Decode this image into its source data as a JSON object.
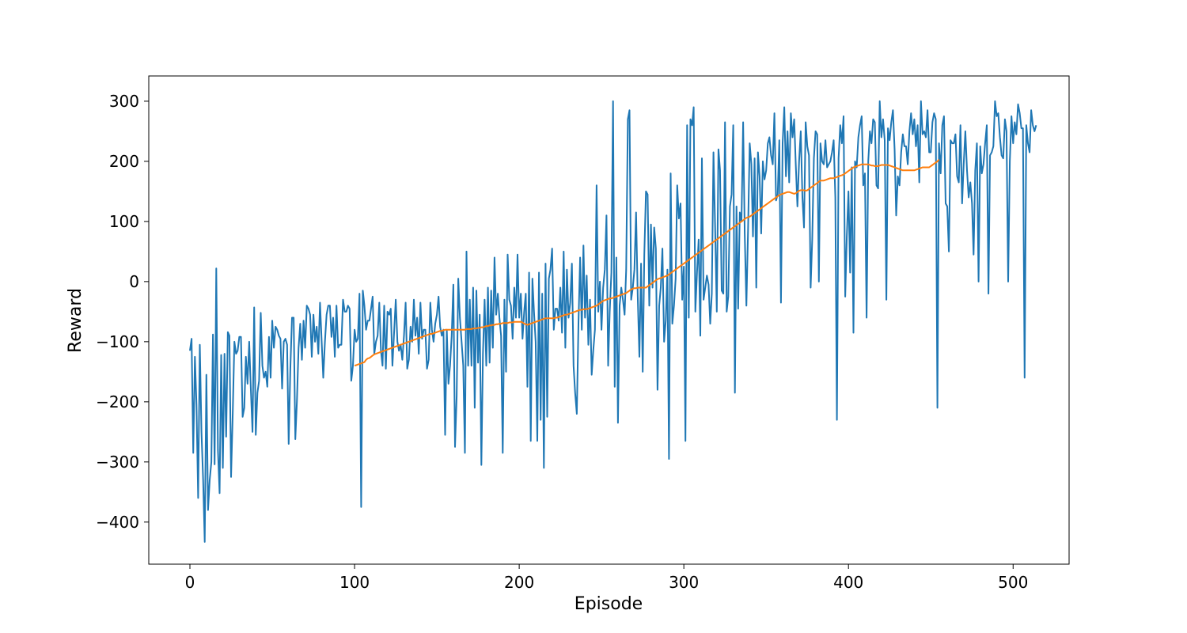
{
  "chart_data": {
    "type": "line",
    "title": "",
    "xlabel": "Episode",
    "ylabel": "Reward",
    "xlim": [
      -25,
      534
    ],
    "ylim": [
      -470,
      342
    ],
    "xticks": [
      0,
      100,
      200,
      300,
      400,
      500
    ],
    "yticks": [
      -400,
      -300,
      -200,
      -100,
      0,
      100,
      200,
      300
    ],
    "ytick_labels": [
      "−400",
      "−300",
      "−200",
      "−100",
      "0",
      "100",
      "200",
      "300"
    ],
    "grid": false,
    "legend": null,
    "colors": {
      "episode_reward": "#1f77b4",
      "moving_average": "#ff7f0e"
    },
    "series": [
      {
        "key": "episode_reward",
        "x_start": 0,
        "values": [
          -115,
          -95,
          -285,
          -125,
          -205,
          -360,
          -105,
          -250,
          -330,
          -433,
          -155,
          -380,
          -330,
          -300,
          -88,
          -304,
          22,
          -280,
          -352,
          -122,
          -310,
          -120,
          -258,
          -84,
          -90,
          -325,
          -220,
          -100,
          -120,
          -115,
          -92,
          -92,
          -225,
          -210,
          -125,
          -170,
          -100,
          -180,
          -250,
          -43,
          -255,
          -185,
          -165,
          -52,
          -140,
          -160,
          -150,
          -175,
          -92,
          -160,
          -65,
          -110,
          -75,
          -80,
          -90,
          -95,
          -178,
          -100,
          -95,
          -105,
          -270,
          -145,
          -60,
          -60,
          -262,
          -200,
          -110,
          -70,
          -130,
          -65,
          -110,
          -40,
          -45,
          -55,
          -125,
          -55,
          -100,
          -75,
          -120,
          -35,
          -100,
          -160,
          -100,
          -55,
          -40,
          -40,
          -92,
          -60,
          -125,
          -40,
          -110,
          -105,
          -105,
          -30,
          -50,
          -50,
          -40,
          -45,
          -165,
          -140,
          -80,
          -100,
          -95,
          -20,
          -375,
          -15,
          -40,
          -80,
          -65,
          -65,
          -45,
          -25,
          -120,
          -100,
          -90,
          -35,
          -115,
          -140,
          -40,
          -145,
          -50,
          -55,
          -45,
          -140,
          -85,
          -30,
          -100,
          -115,
          -105,
          -130,
          -90,
          -35,
          -145,
          -130,
          -75,
          -100,
          -30,
          -90,
          -60,
          -120,
          -35,
          -95,
          -80,
          -80,
          -145,
          -130,
          -35,
          -80,
          -100,
          -70,
          -55,
          -25,
          -75,
          -90,
          -80,
          -255,
          -80,
          -170,
          -140,
          -90,
          -5,
          -275,
          -190,
          5,
          -60,
          -100,
          -140,
          -285,
          50,
          -140,
          -30,
          -140,
          -10,
          -210,
          -15,
          -135,
          -55,
          -305,
          -120,
          -30,
          -140,
          -10,
          -135,
          -15,
          -110,
          40,
          -55,
          -20,
          -60,
          -90,
          -285,
          -30,
          -150,
          45,
          -30,
          -40,
          -95,
          -10,
          -60,
          45,
          -60,
          -20,
          -95,
          -50,
          -20,
          -175,
          15,
          -265,
          5,
          -50,
          -100,
          -265,
          15,
          -230,
          -20,
          -310,
          30,
          -225,
          5,
          20,
          55,
          -80,
          -45,
          -45,
          -65,
          -10,
          -85,
          50,
          -110,
          20,
          -60,
          -35,
          30,
          -140,
          -185,
          -220,
          -70,
          40,
          -80,
          60,
          -60,
          10,
          -105,
          -30,
          -155,
          -115,
          -80,
          160,
          -50,
          0,
          -80,
          -10,
          20,
          110,
          -140,
          -50,
          15,
          300,
          -175,
          40,
          -235,
          -40,
          -10,
          -30,
          -55,
          20,
          270,
          285,
          -30,
          -10,
          20,
          115,
          -25,
          -125,
          30,
          -150,
          45,
          150,
          145,
          -40,
          95,
          -10,
          90,
          55,
          -180,
          -40,
          -10,
          55,
          -100,
          -65,
          20,
          -295,
          180,
          -70,
          -40,
          5,
          160,
          105,
          130,
          -30,
          25,
          -265,
          260,
          -60,
          270,
          260,
          290,
          -50,
          15,
          70,
          -90,
          205,
          -30,
          -10,
          10,
          -5,
          -70,
          -20,
          215,
          90,
          -50,
          220,
          185,
          -15,
          -20,
          265,
          -50,
          -25,
          125,
          145,
          260,
          -185,
          125,
          -45,
          115,
          100,
          265,
          80,
          -40,
          85,
          230,
          195,
          75,
          205,
          -10,
          215,
          175,
          80,
          200,
          170,
          185,
          230,
          240,
          210,
          195,
          280,
          135,
          145,
          235,
          -35,
          230,
          290,
          175,
          250,
          165,
          280,
          240,
          270,
          195,
          125,
          200,
          250,
          140,
          90,
          265,
          225,
          210,
          -10,
          70,
          205,
          250,
          245,
          0,
          230,
          200,
          195,
          235,
          190,
          195,
          200,
          215,
          235,
          140,
          -230,
          205,
          260,
          230,
          275,
          -25,
          75,
          150,
          15,
          190,
          -85,
          200,
          190,
          240,
          260,
          275,
          160,
          180,
          -60,
          200,
          250,
          230,
          270,
          265,
          160,
          155,
          300,
          240,
          270,
          235,
          -30,
          255,
          235,
          265,
          285,
          220,
          110,
          175,
          160,
          215,
          245,
          225,
          225,
          195,
          250,
          280,
          245,
          270,
          225,
          260,
          165,
          300,
          245,
          250,
          240,
          285,
          215,
          215,
          265,
          280,
          270,
          -210,
          230,
          180,
          260,
          275,
          130,
          125,
          50,
          235,
          230,
          230,
          245,
          175,
          165,
          260,
          130,
          195,
          250,
          185,
          140,
          165,
          130,
          45,
          185,
          230,
          0,
          225,
          180,
          195,
          230,
          260,
          -20,
          210,
          215,
          225,
          300,
          275,
          280,
          240,
          210,
          205,
          270,
          250,
          0,
          200,
          275,
          230,
          265,
          245,
          295,
          280,
          255,
          255,
          -160,
          260,
          230,
          215,
          285,
          260,
          250,
          260
        ]
      },
      {
        "key": "moving_average",
        "x_start": 100,
        "values": [
          -140,
          -139,
          -138,
          -137,
          -136,
          -135,
          -134,
          -130,
          -128,
          -127,
          -125,
          -123,
          -121,
          -120,
          -119,
          -118,
          -117,
          -116,
          -115,
          -114,
          -113,
          -112,
          -111,
          -110,
          -109,
          -108,
          -107,
          -106,
          -105,
          -104,
          -103,
          -102,
          -101,
          -100,
          -99,
          -98,
          -97,
          -96,
          -95,
          -94,
          -93,
          -92,
          -91,
          -90,
          -89,
          -88,
          -87,
          -87,
          -86,
          -85,
          -84,
          -83,
          -82,
          -82,
          -81,
          -80,
          -80,
          -80,
          -80,
          -80,
          -80,
          -80,
          -80,
          -80,
          -80,
          -80,
          -80,
          -80,
          -79,
          -79,
          -79,
          -79,
          -78,
          -78,
          -78,
          -77,
          -77,
          -76,
          -76,
          -75,
          -74,
          -74,
          -73,
          -73,
          -72,
          -72,
          -71,
          -71,
          -70,
          -70,
          -69,
          -69,
          -69,
          -69,
          -68,
          -68,
          -68,
          -67,
          -67,
          -67,
          -67,
          -67,
          -68,
          -70,
          -71,
          -72,
          -71,
          -70,
          -69,
          -68,
          -67,
          -66,
          -65,
          -64,
          -63,
          -62,
          -61,
          -61,
          -61,
          -61,
          -61,
          -61,
          -60,
          -60,
          -59,
          -58,
          -57,
          -56,
          -55,
          -55,
          -54,
          -53,
          -52,
          -51,
          -50,
          -49,
          -48,
          -47,
          -47,
          -46,
          -46,
          -46,
          -45,
          -44,
          -43,
          -42,
          -41,
          -40,
          -38,
          -36,
          -34,
          -32,
          -31,
          -30,
          -29,
          -28,
          -28,
          -27,
          -26,
          -25,
          -24,
          -23,
          -22,
          -21,
          -20,
          -19,
          -17,
          -15,
          -13,
          -12,
          -11,
          -11,
          -10,
          -10,
          -10,
          -10,
          -10,
          -10,
          -8,
          -6,
          -4,
          -2,
          0,
          2,
          4,
          5,
          6,
          7,
          8,
          9,
          10,
          12,
          14,
          16,
          18,
          20,
          22,
          24,
          26,
          28,
          30,
          32,
          34,
          36,
          38,
          40,
          42,
          44,
          46,
          48,
          50,
          52,
          54,
          56,
          58,
          60,
          62,
          64,
          66,
          68,
          70,
          72,
          74,
          76,
          78,
          80,
          82,
          84,
          86,
          88,
          90,
          92,
          94,
          96,
          98,
          100,
          102,
          104,
          106,
          107,
          108,
          110,
          112,
          114,
          116,
          118,
          120,
          122,
          124,
          126,
          128,
          130,
          132,
          134,
          136,
          138,
          140,
          142,
          144,
          145,
          146,
          147,
          148,
          149,
          149,
          148,
          147,
          146,
          147,
          149,
          151,
          152,
          152,
          152,
          151,
          152,
          154,
          156,
          158,
          160,
          162,
          164,
          166,
          168,
          168,
          168,
          169,
          170,
          171,
          172,
          172,
          172,
          173,
          174,
          175,
          176,
          177,
          178,
          180,
          182,
          184,
          186,
          188,
          190,
          191,
          192,
          193,
          194,
          195,
          195,
          195,
          195,
          195,
          194,
          193,
          193,
          192,
          192,
          192,
          193,
          194,
          194,
          194,
          194,
          194,
          193,
          192,
          191,
          190,
          189,
          188,
          187,
          186,
          185,
          185,
          185,
          185,
          185,
          185,
          185,
          185,
          186,
          187,
          188,
          189,
          190,
          190,
          190,
          190,
          190,
          192,
          194,
          196,
          198,
          200,
          203
        ]
      }
    ]
  }
}
